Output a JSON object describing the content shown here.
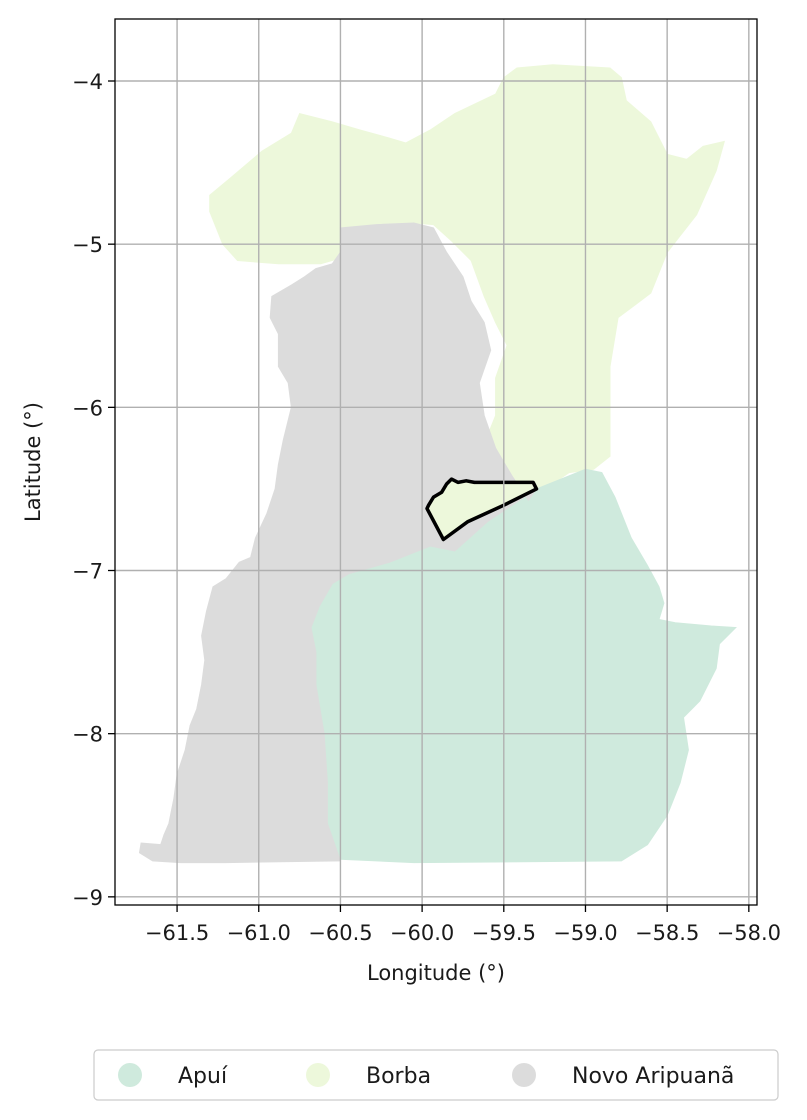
{
  "chart_data": {
    "type": "map",
    "xlabel": "Longitude (°)",
    "ylabel": "Latitude (°)",
    "xlim": [
      -61.88,
      -57.95
    ],
    "ylim": [
      -9.05,
      -3.62
    ],
    "grid": true,
    "x_ticks": [
      {
        "value": -61.5,
        "label": "−61.5"
      },
      {
        "value": -61.0,
        "label": "−61.0"
      },
      {
        "value": -60.5,
        "label": "−60.5"
      },
      {
        "value": -60.0,
        "label": "−60.0"
      },
      {
        "value": -59.5,
        "label": "−59.5"
      },
      {
        "value": -59.0,
        "label": "−59.0"
      },
      {
        "value": -58.5,
        "label": "−58.5"
      },
      {
        "value": -58.0,
        "label": "−58.0"
      }
    ],
    "y_ticks": [
      {
        "value": -4,
        "label": "−4"
      },
      {
        "value": -5,
        "label": "−5"
      },
      {
        "value": -6,
        "label": "−6"
      },
      {
        "value": -7,
        "label": "−7"
      },
      {
        "value": -8,
        "label": "−8"
      },
      {
        "value": -9,
        "label": "−9"
      }
    ],
    "legend_position": "bottom-center",
    "regions": [
      {
        "name": "Borba",
        "color": "#edf8db",
        "coords": [
          [
            -61.3,
            -4.7
          ],
          [
            -61.18,
            -4.6
          ],
          [
            -60.98,
            -4.43
          ],
          [
            -60.8,
            -4.32
          ],
          [
            -60.75,
            -4.2
          ],
          [
            -60.55,
            -4.25
          ],
          [
            -60.38,
            -4.3
          ],
          [
            -60.2,
            -4.35
          ],
          [
            -60.1,
            -4.38
          ],
          [
            -59.95,
            -4.3
          ],
          [
            -59.8,
            -4.2
          ],
          [
            -59.55,
            -4.08
          ],
          [
            -59.5,
            -3.98
          ],
          [
            -59.42,
            -3.92
          ],
          [
            -59.2,
            -3.9
          ],
          [
            -58.85,
            -3.92
          ],
          [
            -58.78,
            -3.98
          ],
          [
            -58.75,
            -4.12
          ],
          [
            -58.6,
            -4.25
          ],
          [
            -58.5,
            -4.45
          ],
          [
            -58.38,
            -4.48
          ],
          [
            -58.28,
            -4.4
          ],
          [
            -58.15,
            -4.37
          ],
          [
            -58.2,
            -4.55
          ],
          [
            -58.32,
            -4.82
          ],
          [
            -58.5,
            -5.05
          ],
          [
            -58.6,
            -5.3
          ],
          [
            -58.8,
            -5.45
          ],
          [
            -58.85,
            -5.75
          ],
          [
            -58.85,
            -6.3
          ],
          [
            -58.95,
            -6.38
          ],
          [
            -59.1,
            -6.4
          ],
          [
            -59.35,
            -6.57
          ],
          [
            -59.65,
            -6.68
          ],
          [
            -59.8,
            -6.88
          ],
          [
            -59.95,
            -6.85
          ],
          [
            -60.0,
            -6.65
          ],
          [
            -59.85,
            -6.45
          ],
          [
            -59.65,
            -6.3
          ],
          [
            -59.55,
            -6.05
          ],
          [
            -59.55,
            -5.82
          ],
          [
            -59.48,
            -5.62
          ],
          [
            -59.55,
            -5.48
          ],
          [
            -59.62,
            -5.32
          ],
          [
            -59.7,
            -5.1
          ],
          [
            -59.82,
            -4.98
          ],
          [
            -59.93,
            -4.88
          ],
          [
            -60.05,
            -4.87
          ],
          [
            -60.33,
            -4.92
          ],
          [
            -60.48,
            -5.08
          ],
          [
            -60.62,
            -5.12
          ],
          [
            -60.88,
            -5.12
          ],
          [
            -61.13,
            -5.1
          ],
          [
            -61.22,
            -5.0
          ],
          [
            -61.3,
            -4.8
          ]
        ]
      },
      {
        "name": "Apuí",
        "color": "#cfeadd",
        "coords": [
          [
            -59.0,
            -6.38
          ],
          [
            -58.9,
            -6.4
          ],
          [
            -58.82,
            -6.55
          ],
          [
            -58.72,
            -6.8
          ],
          [
            -58.62,
            -6.97
          ],
          [
            -58.55,
            -7.1
          ],
          [
            -58.52,
            -7.2
          ],
          [
            -58.55,
            -7.3
          ],
          [
            -58.45,
            -7.32
          ],
          [
            -58.23,
            -7.34
          ],
          [
            -58.08,
            -7.35
          ],
          [
            -58.18,
            -7.45
          ],
          [
            -58.2,
            -7.6
          ],
          [
            -58.3,
            -7.8
          ],
          [
            -58.4,
            -7.9
          ],
          [
            -58.37,
            -8.1
          ],
          [
            -58.42,
            -8.3
          ],
          [
            -58.5,
            -8.5
          ],
          [
            -58.62,
            -8.68
          ],
          [
            -58.78,
            -8.78
          ],
          [
            -60.05,
            -8.79
          ],
          [
            -60.5,
            -8.77
          ],
          [
            -60.58,
            -8.55
          ],
          [
            -60.58,
            -8.3
          ],
          [
            -60.6,
            -8.0
          ],
          [
            -60.65,
            -7.7
          ],
          [
            -60.65,
            -7.5
          ],
          [
            -60.68,
            -7.35
          ],
          [
            -60.63,
            -7.22
          ],
          [
            -60.55,
            -7.08
          ],
          [
            -60.45,
            -7.02
          ],
          [
            -60.2,
            -6.95
          ],
          [
            -59.95,
            -6.85
          ],
          [
            -59.8,
            -6.88
          ],
          [
            -59.6,
            -6.7
          ],
          [
            -59.3,
            -6.5
          ]
        ]
      },
      {
        "name": "Novo Aripuanã",
        "color": "#dcdcdc",
        "coords": [
          [
            -60.28,
            -4.88
          ],
          [
            -60.5,
            -4.9
          ],
          [
            -60.5,
            -5.05
          ],
          [
            -60.55,
            -5.12
          ],
          [
            -60.65,
            -5.15
          ],
          [
            -60.72,
            -5.2
          ],
          [
            -60.8,
            -5.25
          ],
          [
            -60.92,
            -5.32
          ],
          [
            -60.93,
            -5.45
          ],
          [
            -60.88,
            -5.55
          ],
          [
            -60.88,
            -5.75
          ],
          [
            -60.82,
            -5.85
          ],
          [
            -60.8,
            -6.0
          ],
          [
            -60.85,
            -6.2
          ],
          [
            -60.88,
            -6.35
          ],
          [
            -60.9,
            -6.5
          ],
          [
            -60.95,
            -6.65
          ],
          [
            -61.02,
            -6.8
          ],
          [
            -61.05,
            -6.92
          ],
          [
            -61.12,
            -6.95
          ],
          [
            -61.2,
            -7.05
          ],
          [
            -61.28,
            -7.1
          ],
          [
            -61.32,
            -7.25
          ],
          [
            -61.35,
            -7.4
          ],
          [
            -61.33,
            -7.55
          ],
          [
            -61.35,
            -7.7
          ],
          [
            -61.38,
            -7.85
          ],
          [
            -61.42,
            -7.95
          ],
          [
            -61.45,
            -8.1
          ],
          [
            -61.5,
            -8.25
          ],
          [
            -61.52,
            -8.4
          ],
          [
            -61.55,
            -8.55
          ],
          [
            -61.58,
            -8.62
          ],
          [
            -61.6,
            -8.68
          ],
          [
            -61.72,
            -8.67
          ],
          [
            -61.73,
            -8.73
          ],
          [
            -61.65,
            -8.78
          ],
          [
            -61.48,
            -8.79
          ],
          [
            -61.2,
            -8.79
          ],
          [
            -60.5,
            -8.78
          ],
          [
            -60.58,
            -8.55
          ],
          [
            -60.58,
            -8.3
          ],
          [
            -60.6,
            -8.0
          ],
          [
            -60.65,
            -7.7
          ],
          [
            -60.65,
            -7.5
          ],
          [
            -60.68,
            -7.35
          ],
          [
            -60.63,
            -7.22
          ],
          [
            -60.55,
            -7.08
          ],
          [
            -60.45,
            -7.02
          ],
          [
            -60.2,
            -6.95
          ],
          [
            -59.95,
            -6.85
          ],
          [
            -59.8,
            -6.88
          ],
          [
            -59.6,
            -6.7
          ],
          [
            -59.3,
            -6.5
          ],
          [
            -59.35,
            -6.57
          ],
          [
            -59.45,
            -6.42
          ],
          [
            -59.55,
            -6.25
          ],
          [
            -59.62,
            -6.05
          ],
          [
            -59.65,
            -5.85
          ],
          [
            -59.58,
            -5.65
          ],
          [
            -59.62,
            -5.48
          ],
          [
            -59.7,
            -5.35
          ],
          [
            -59.75,
            -5.2
          ],
          [
            -59.85,
            -5.05
          ],
          [
            -59.93,
            -4.9
          ],
          [
            -60.05,
            -4.87
          ]
        ]
      }
    ],
    "highlight": {
      "name": "highlighted-area",
      "fill": "#edf8db",
      "stroke": "#000000",
      "coords": [
        [
          -59.96,
          -6.6
        ],
        [
          -59.93,
          -6.55
        ],
        [
          -59.88,
          -6.52
        ],
        [
          -59.85,
          -6.47
        ],
        [
          -59.82,
          -6.44
        ],
        [
          -59.78,
          -6.46
        ],
        [
          -59.73,
          -6.45
        ],
        [
          -59.68,
          -6.46
        ],
        [
          -59.6,
          -6.46
        ],
        [
          -59.32,
          -6.46
        ],
        [
          -59.3,
          -6.5
        ],
        [
          -59.5,
          -6.6
        ],
        [
          -59.72,
          -6.7
        ],
        [
          -59.87,
          -6.81
        ],
        [
          -59.97,
          -6.62
        ]
      ]
    },
    "legend": [
      {
        "label": "Apuí",
        "color": "#cfeadd"
      },
      {
        "label": "Borba",
        "color": "#edf8db"
      },
      {
        "label": "Novo Aripuanã",
        "color": "#dcdcdc"
      }
    ]
  }
}
